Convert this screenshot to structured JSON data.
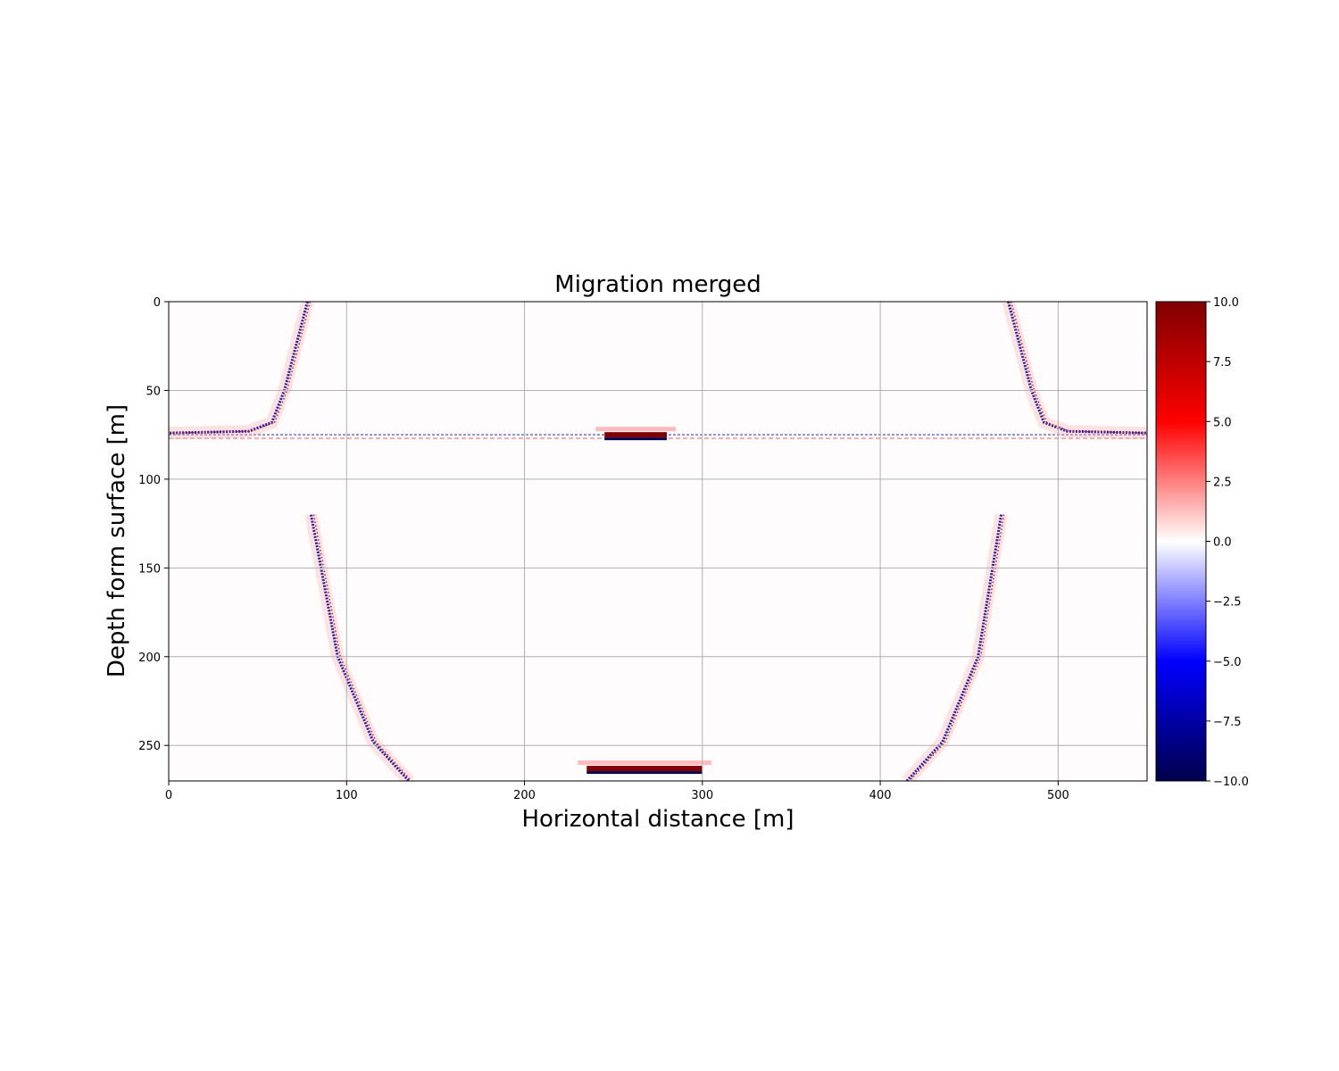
{
  "chart_data": {
    "type": "heatmap",
    "title": "Migration merged",
    "xlabel": "Horizontal distance [m]",
    "ylabel": "Depth form surface [m]",
    "xlim": [
      0,
      550
    ],
    "ylim": [
      270,
      0
    ],
    "xticks": [
      0,
      100,
      200,
      300,
      400,
      500
    ],
    "yticks": [
      0,
      50,
      100,
      150,
      200,
      250
    ],
    "grid": true,
    "colormap": "seismic",
    "colorbar": {
      "range": [
        -10.0,
        10.0
      ],
      "ticks": [
        "10.0",
        "7.5",
        "5.0",
        "2.5",
        "0.0",
        "−2.5",
        "−5.0",
        "−7.5",
        "−10.0"
      ],
      "tick_values": [
        10.0,
        7.5,
        5.0,
        2.5,
        0.0,
        -2.5,
        -5.0,
        -7.5,
        -10.0
      ],
      "colors": [
        "#00004c",
        "#0000ff",
        "#ffffff",
        "#ff0000",
        "#800000"
      ]
    },
    "features": [
      {
        "kind": "reflector",
        "x_from": 0,
        "x_to": 550,
        "depth": 75
      },
      {
        "kind": "strong_reflector",
        "x_from": 245,
        "x_to": 280,
        "depth": 75,
        "value": 10
      },
      {
        "kind": "strong_reflector",
        "x_from": 235,
        "x_to": 300,
        "depth": 263,
        "value": 10
      },
      {
        "kind": "dipping_event",
        "points": [
          [
            78,
            0
          ],
          [
            65,
            50
          ],
          [
            58,
            68
          ],
          [
            45,
            73
          ],
          [
            0,
            74
          ]
        ]
      },
      {
        "kind": "dipping_event",
        "points": [
          [
            472,
            0
          ],
          [
            485,
            50
          ],
          [
            492,
            68
          ],
          [
            505,
            73
          ],
          [
            550,
            74
          ]
        ]
      },
      {
        "kind": "dipping_event",
        "points": [
          [
            80,
            120
          ],
          [
            95,
            200
          ],
          [
            115,
            248
          ],
          [
            135,
            270
          ]
        ]
      },
      {
        "kind": "dipping_event",
        "points": [
          [
            468,
            120
          ],
          [
            455,
            200
          ],
          [
            435,
            248
          ],
          [
            415,
            270
          ]
        ]
      }
    ]
  }
}
